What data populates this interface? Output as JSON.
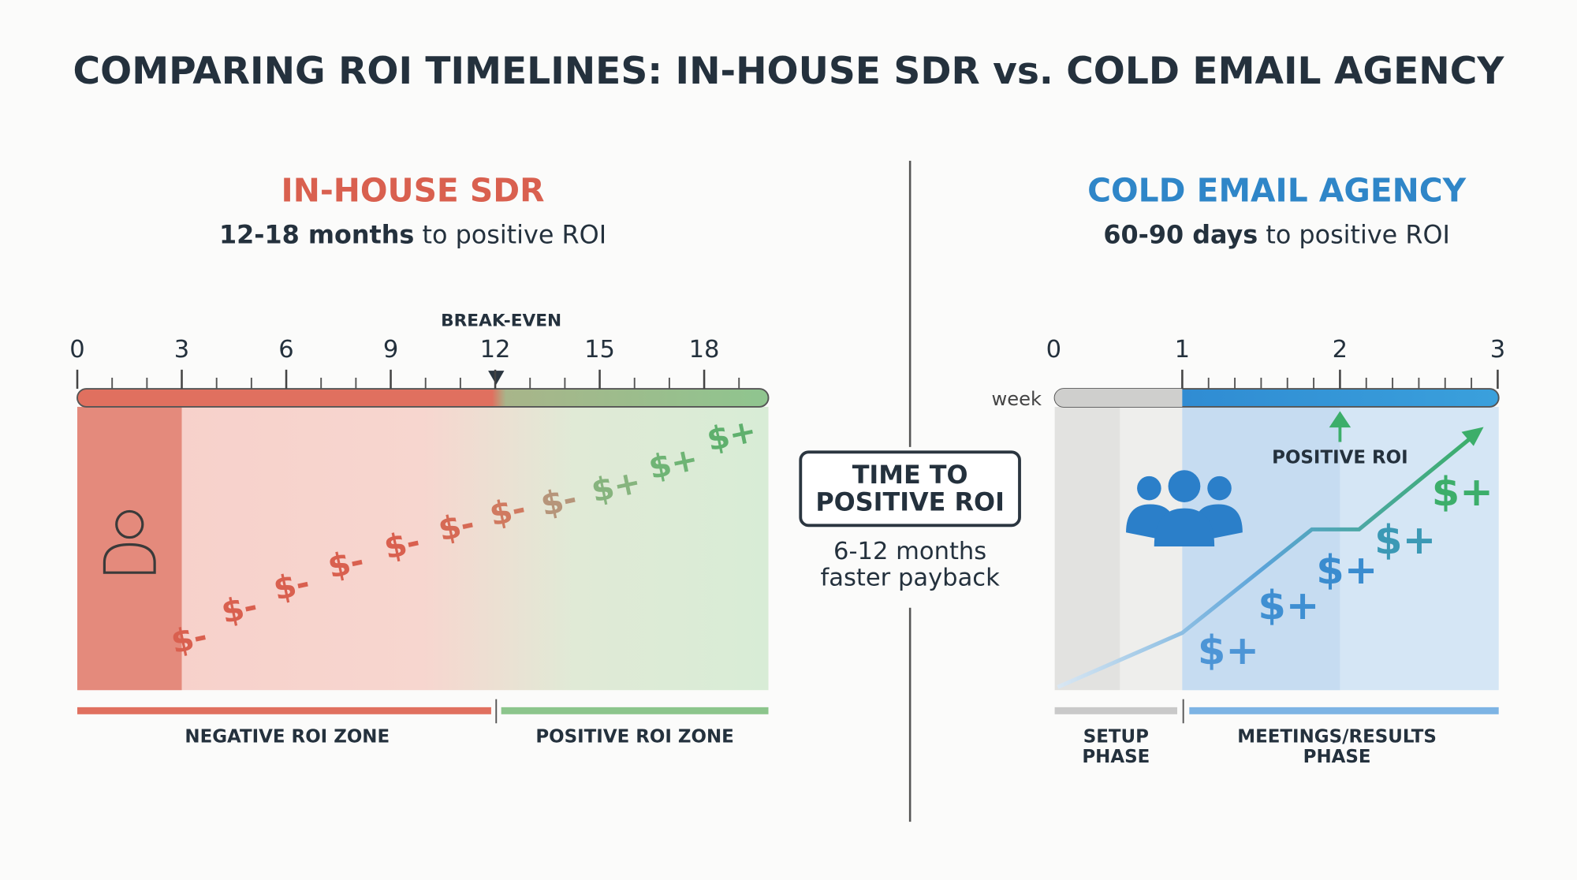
{
  "title": "COMPARING ROI TIMELINES: IN-HOUSE SDR vs. COLD EMAIL AGENCY",
  "left": {
    "heading": "IN-HOUSE SDR",
    "subtitle": {
      "bold": "12-18 months",
      "rest": " to positive ROI"
    },
    "ticks": [
      0,
      3,
      6,
      9,
      12,
      15,
      18
    ],
    "marker": "BREAK-EVEN",
    "signs": [
      "$-",
      "$-",
      "$-",
      "$-",
      "$-",
      "$-",
      "$-",
      "$-",
      "$+",
      "$+",
      "$+"
    ],
    "zones": [
      "NEGATIVE ROI ZONE",
      "POSITIVE ROI ZONE"
    ]
  },
  "center": {
    "box": [
      "TIME TO",
      "POSITIVE ROI"
    ],
    "note": [
      "6-12 months",
      "faster payback"
    ]
  },
  "right": {
    "heading": "COLD EMAIL AGENCY",
    "subtitle": {
      "bold": "60-90 days",
      "rest": " to positive ROI"
    },
    "ticks": [
      0,
      1,
      2,
      3
    ],
    "unit": "week",
    "marker": "POSITIVE ROI",
    "signs": [
      "$+",
      "$+",
      "$+",
      "$+",
      "$+"
    ],
    "zones": [
      [
        "SETUP",
        "PHASE"
      ],
      [
        "MEETINGS/RESULTS",
        "PHASE"
      ]
    ]
  }
}
